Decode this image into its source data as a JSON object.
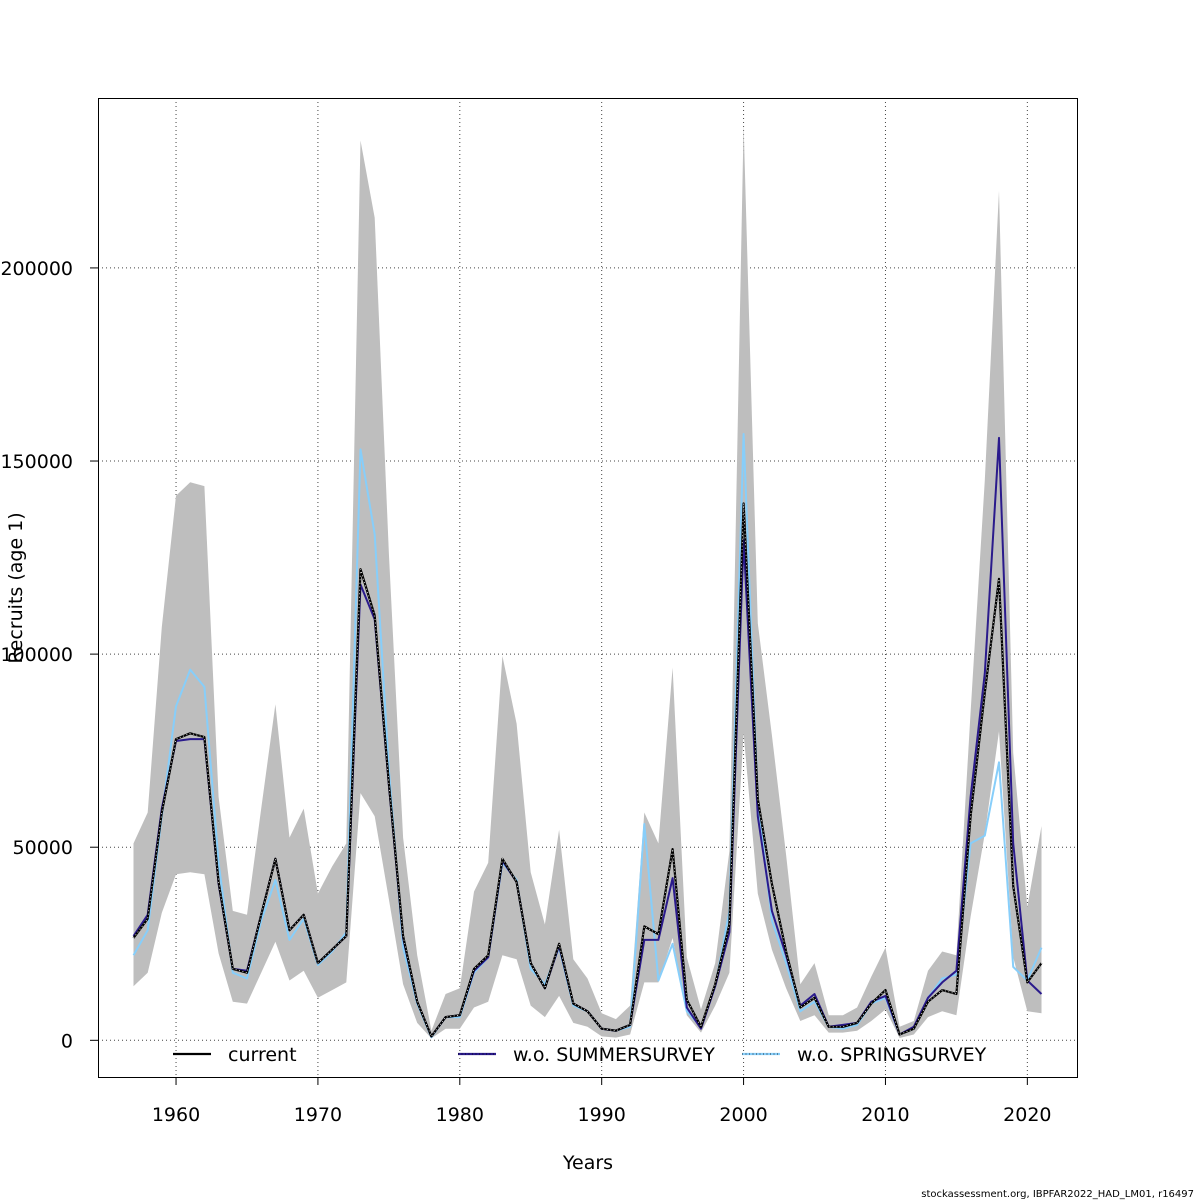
{
  "chart_data": {
    "type": "line",
    "xlabel": "Years",
    "ylabel": "Recruits (age 1)",
    "xlim": [
      1954.5,
      2023.5
    ],
    "ylim": [
      -9500,
      244000
    ],
    "x_ticks": [
      1960,
      1970,
      1980,
      1990,
      2000,
      2010,
      2020
    ],
    "y_ticks": [
      0,
      50000,
      100000,
      150000,
      200000
    ],
    "x_tick_labels": [
      "1960",
      "1970",
      "1980",
      "1990",
      "2000",
      "2010",
      "2020"
    ],
    "y_tick_labels": [
      "0",
      "50000",
      "100000",
      "150000",
      "200000"
    ],
    "grid": true,
    "legend_position": "bottom",
    "years": [
      1957,
      1958,
      1959,
      1960,
      1961,
      1962,
      1963,
      1964,
      1965,
      1966,
      1967,
      1968,
      1969,
      1970,
      1971,
      1972,
      1973,
      1974,
      1975,
      1976,
      1977,
      1978,
      1979,
      1980,
      1981,
      1982,
      1983,
      1984,
      1985,
      1986,
      1987,
      1988,
      1989,
      1990,
      1991,
      1992,
      1993,
      1994,
      1995,
      1996,
      1997,
      1998,
      1999,
      2000,
      2001,
      2002,
      2003,
      2004,
      2005,
      2006,
      2007,
      2008,
      2009,
      2010,
      2011,
      2012,
      2013,
      2014,
      2015,
      2016,
      2017,
      2018,
      2019,
      2020,
      2021
    ],
    "band": {
      "color": "#bebebe",
      "upper": [
        51000,
        59000,
        107000,
        141000,
        144500,
        143500,
        63000,
        33500,
        32500,
        60000,
        87000,
        52500,
        60000,
        38000,
        45000,
        51000,
        233000,
        213000,
        126000,
        52500,
        22000,
        2500,
        12000,
        13500,
        38500,
        46000,
        99500,
        82000,
        43500,
        30000,
        54500,
        21000,
        16000,
        7000,
        5500,
        9000,
        59000,
        51000,
        96500,
        21500,
        8000,
        20000,
        49000,
        237000,
        108000,
        79000,
        48000,
        14500,
        20000,
        6500,
        6500,
        8500,
        16500,
        24000,
        3500,
        5000,
        18000,
        23000,
        22000,
        85000,
        145000,
        220000,
        74500,
        34500,
        55500
      ],
      "lower": [
        14000,
        17500,
        33000,
        43000,
        43500,
        43000,
        22500,
        10000,
        9500,
        17500,
        25500,
        15500,
        18000,
        11000,
        13000,
        15000,
        64000,
        58000,
        36500,
        14500,
        4500,
        500,
        3000,
        3000,
        8500,
        10000,
        22000,
        21000,
        9000,
        6000,
        11500,
        4500,
        3500,
        1000,
        700,
        1500,
        15000,
        15000,
        26500,
        6500,
        2000,
        9000,
        17500,
        79500,
        38000,
        23500,
        13500,
        5000,
        6500,
        2000,
        2000,
        2500,
        5000,
        8000,
        600,
        1500,
        6000,
        7500,
        6500,
        32000,
        53500,
        80000,
        21500,
        7500,
        7000
      ]
    },
    "series": [
      {
        "name": "current",
        "color": "#000000",
        "style": "solid",
        "values": [
          26500,
          31500,
          59000,
          78000,
          79500,
          78500,
          41000,
          18500,
          17500,
          32500,
          47000,
          28500,
          32500,
          20000,
          23500,
          27000,
          122000,
          110000,
          66500,
          27000,
          10000,
          1000,
          6000,
          6500,
          18500,
          22000,
          47000,
          41000,
          20000,
          13500,
          25000,
          9500,
          7500,
          3000,
          2500,
          4000,
          29500,
          27500,
          49500,
          10500,
          3500,
          14500,
          30000,
          139000,
          62500,
          40500,
          23000,
          8500,
          11000,
          3500,
          3500,
          4500,
          9500,
          13000,
          1500,
          3000,
          10000,
          13000,
          12000,
          58000,
          90000,
          119500,
          40000,
          15000,
          20000
        ]
      },
      {
        "name": "w.o. SUMMERSURVEY",
        "color": "#2a1a8c",
        "style": "solid",
        "values": [
          27000,
          32500,
          60000,
          77500,
          78000,
          78000,
          40500,
          18500,
          18000,
          32500,
          47000,
          28500,
          32500,
          20000,
          23500,
          27000,
          118000,
          109000,
          66000,
          26500,
          10000,
          1000,
          6000,
          6500,
          18000,
          21500,
          46500,
          41000,
          20000,
          13500,
          24500,
          9500,
          7500,
          3000,
          2500,
          4000,
          26000,
          26000,
          42000,
          8500,
          3000,
          14000,
          28000,
          129500,
          58000,
          33500,
          22000,
          9000,
          12000,
          3500,
          4000,
          4500,
          10000,
          11500,
          1500,
          3500,
          11000,
          15000,
          18000,
          63000,
          95000,
          156000,
          51000,
          15500,
          12000
        ]
      },
      {
        "name": "w.o. SPRINGSURVEY",
        "color": "#87cefa",
        "style": "solid",
        "values": [
          22000,
          28500,
          58000,
          86500,
          96000,
          91500,
          46000,
          17500,
          16000,
          31000,
          41500,
          26000,
          31500,
          19500,
          23000,
          28000,
          153000,
          131000,
          70000,
          24000,
          9500,
          800,
          6000,
          6000,
          17500,
          21500,
          46000,
          41500,
          18500,
          14500,
          24000,
          9000,
          7500,
          3000,
          2500,
          3500,
          56000,
          15500,
          25000,
          7500,
          3500,
          14000,
          33500,
          157000,
          62000,
          31000,
          20000,
          7500,
          10000,
          3500,
          3000,
          4000,
          9500,
          11000,
          1500,
          3000,
          11000,
          16000,
          17000,
          51000,
          53000,
          72000,
          19000,
          15500,
          24000
        ]
      }
    ],
    "legend": [
      {
        "label": "current",
        "color": "#000000"
      },
      {
        "label": "w.o. SUMMERSURVEY",
        "color": "#2a1a8c"
      },
      {
        "label": "w.o. SPRINGSURVEY",
        "color": "#87cefa"
      }
    ]
  },
  "footer": "stockassessment.org, IBPFAR2022_HAD_LM01, r16497"
}
